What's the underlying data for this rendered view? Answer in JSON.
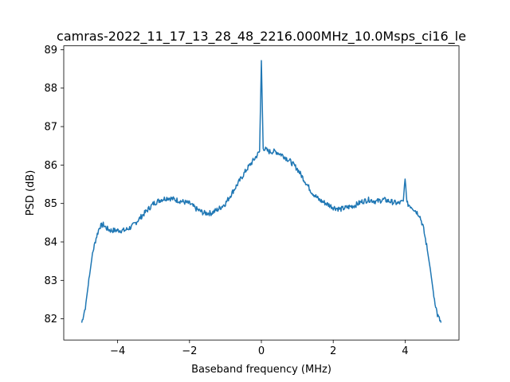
{
  "chart_data": {
    "type": "line",
    "title": "camras-2022_11_17_13_28_48_2216.000MHz_10.0Msps_ci16_le",
    "xlabel": "Baseband frequency (MHz)",
    "ylabel": "PSD (dB)",
    "xlim": [
      -5.5,
      5.5
    ],
    "ylim": [
      81.45,
      89.1
    ],
    "xticks": [
      -4,
      -2,
      0,
      2,
      4
    ],
    "xtick_labels": [
      "−4",
      "−2",
      "0",
      "2",
      "4"
    ],
    "yticks": [
      82,
      83,
      84,
      85,
      86,
      87,
      88,
      89
    ],
    "ytick_labels": [
      "82",
      "83",
      "84",
      "85",
      "86",
      "87",
      "88",
      "89"
    ],
    "grid": false,
    "legend": "none",
    "series": [
      {
        "color": "#1f77b4",
        "x": [
          -5.0,
          -4.9,
          -4.8,
          -4.7,
          -4.6,
          -4.5,
          -4.4,
          -4.3,
          -4.2,
          -4.0,
          -3.8,
          -3.6,
          -3.4,
          -3.2,
          -3.0,
          -2.8,
          -2.6,
          -2.4,
          -2.2,
          -2.0,
          -1.8,
          -1.6,
          -1.4,
          -1.2,
          -1.0,
          -0.8,
          -0.6,
          -0.4,
          -0.2,
          -0.05,
          0.0,
          0.05,
          0.2,
          0.4,
          0.6,
          0.8,
          1.0,
          1.2,
          1.4,
          1.6,
          1.8,
          2.0,
          2.2,
          2.4,
          2.6,
          2.8,
          3.0,
          3.2,
          3.4,
          3.6,
          3.8,
          3.95,
          4.0,
          4.05,
          4.2,
          4.4,
          4.5,
          4.6,
          4.7,
          4.8,
          4.9,
          5.0
        ],
        "y": [
          81.9,
          82.3,
          83.0,
          83.7,
          84.1,
          84.4,
          84.45,
          84.35,
          84.3,
          84.3,
          84.3,
          84.4,
          84.6,
          84.8,
          85.0,
          85.1,
          85.15,
          85.1,
          85.05,
          85.0,
          84.85,
          84.75,
          84.75,
          84.85,
          85.0,
          85.3,
          85.6,
          85.9,
          86.15,
          86.35,
          88.7,
          86.45,
          86.35,
          86.35,
          86.25,
          86.1,
          85.9,
          85.6,
          85.3,
          85.1,
          85.0,
          84.9,
          84.85,
          84.9,
          84.95,
          85.05,
          85.1,
          85.05,
          85.1,
          85.05,
          85.0,
          85.05,
          85.7,
          85.0,
          84.9,
          84.7,
          84.4,
          83.9,
          83.3,
          82.6,
          82.1,
          81.9
        ]
      }
    ]
  }
}
